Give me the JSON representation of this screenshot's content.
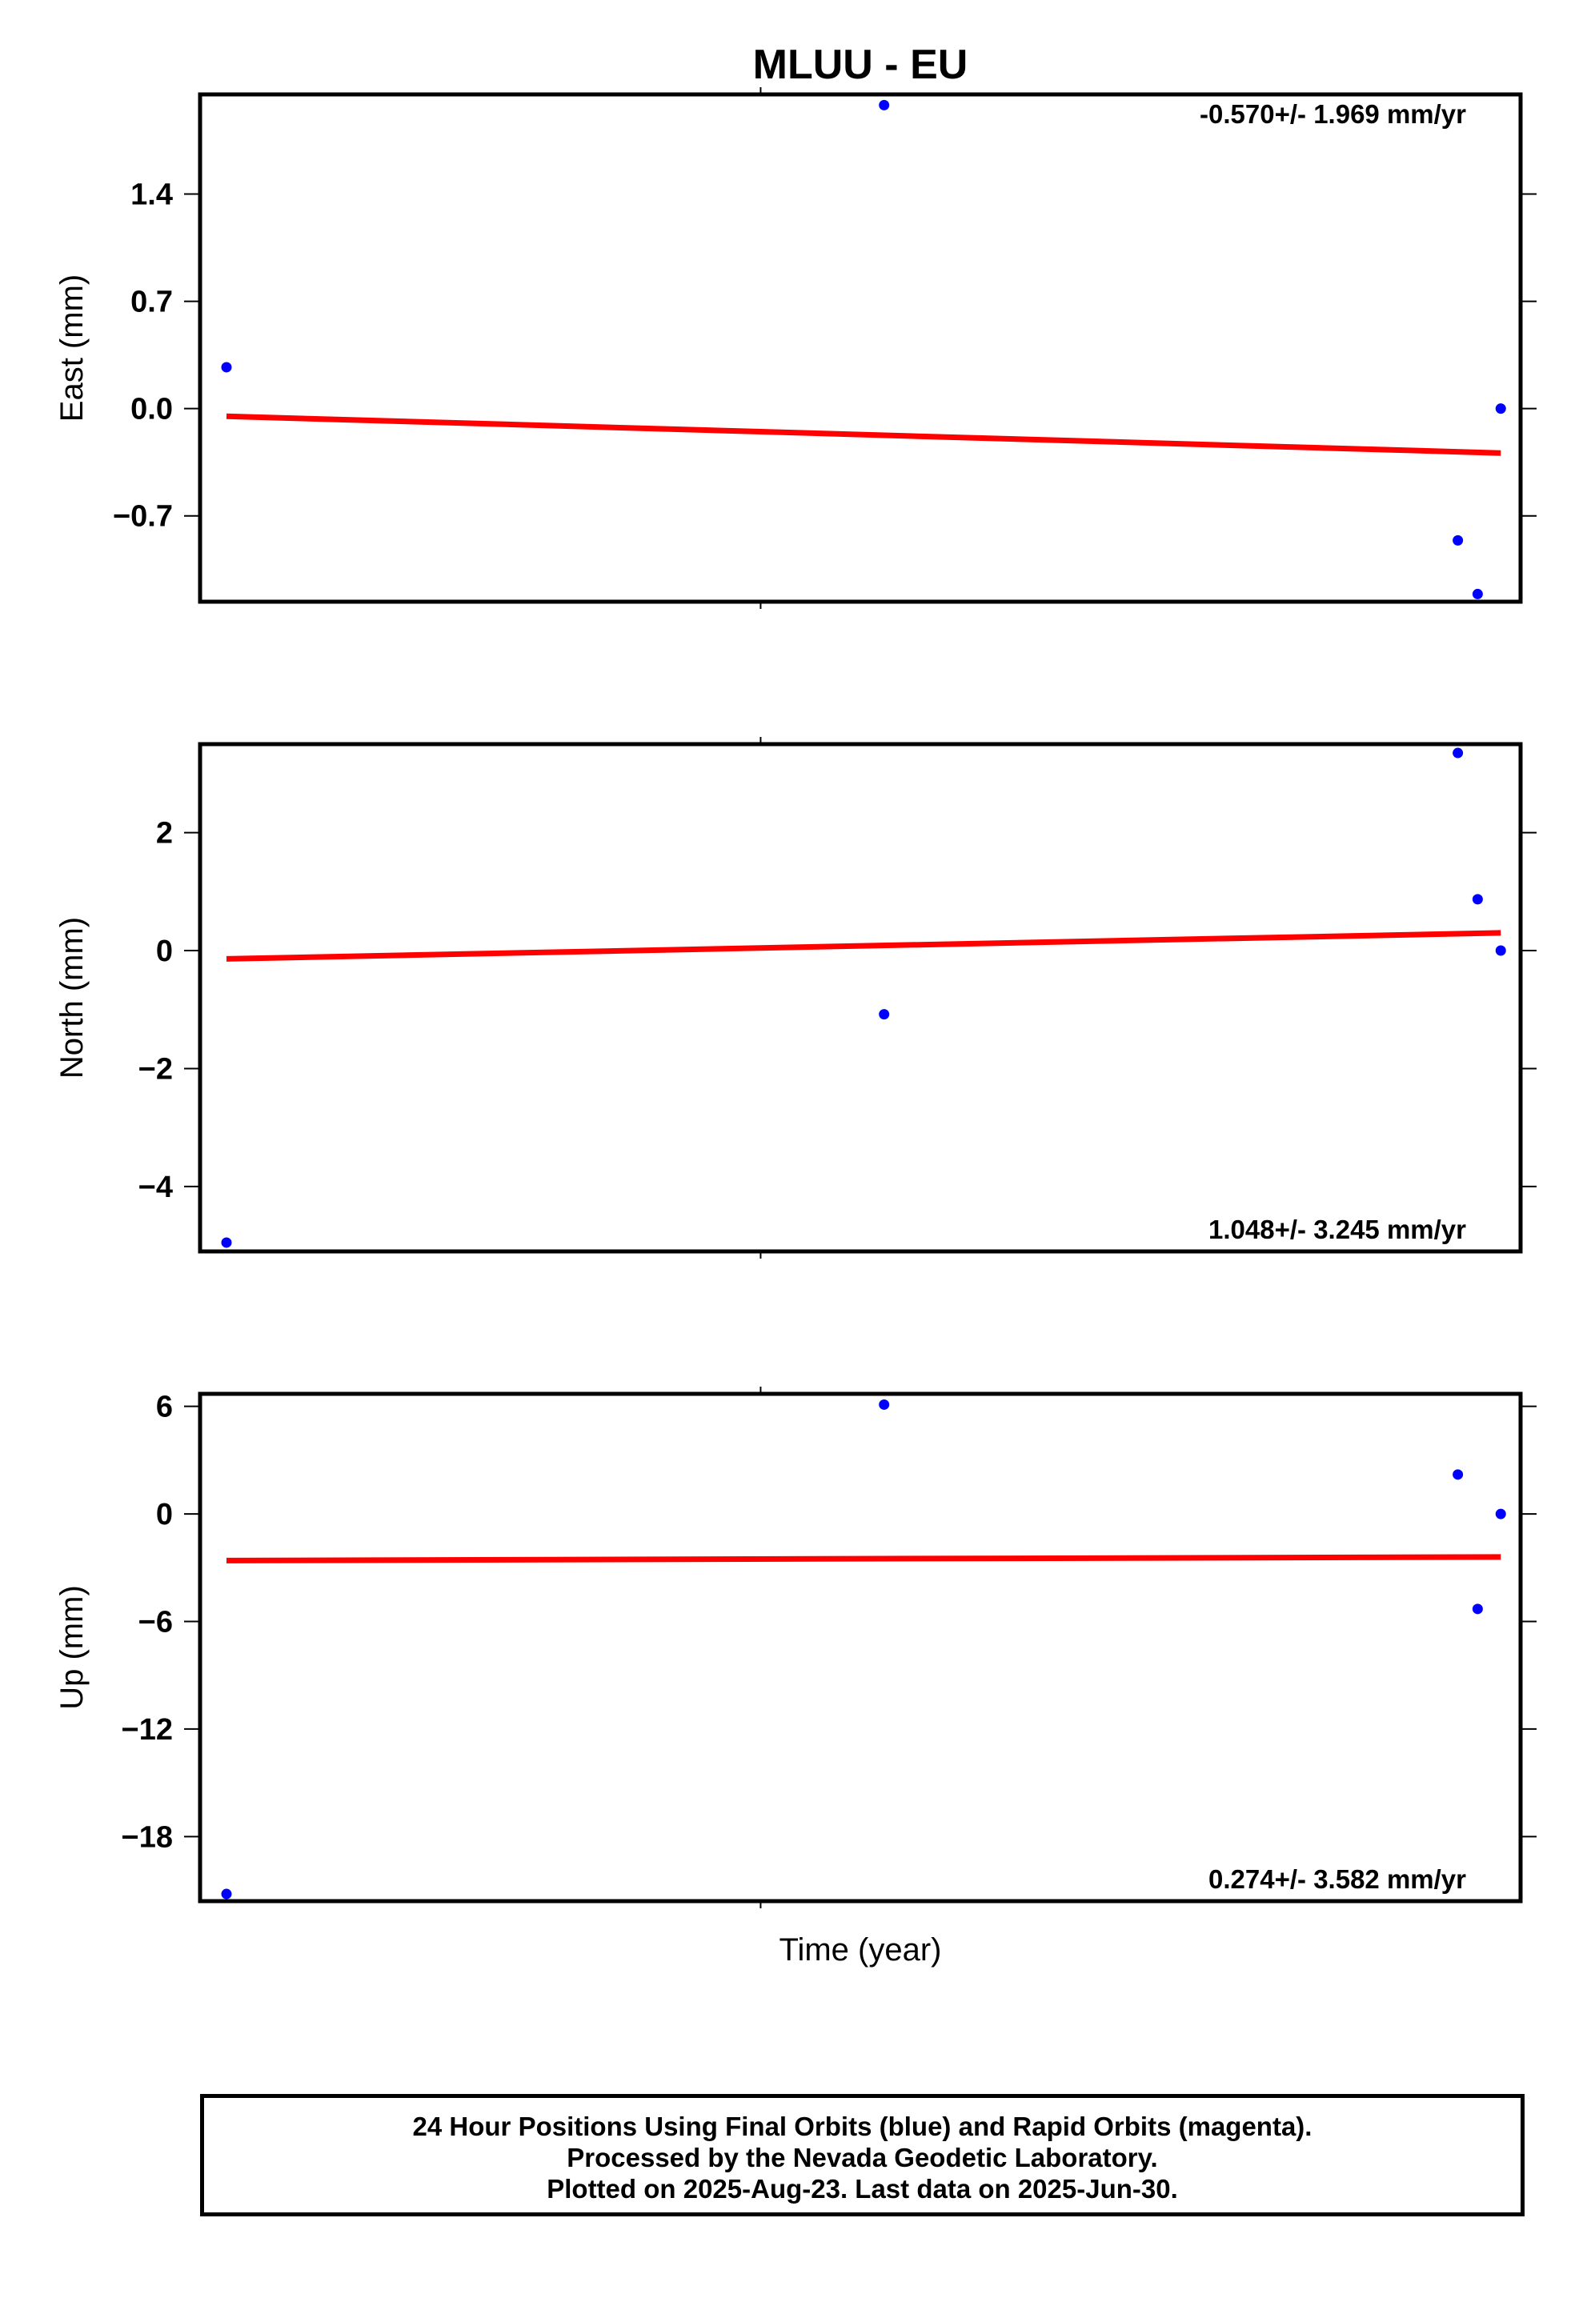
{
  "title": "MLUU - EU",
  "xlabel": "Time (year)",
  "footer": {
    "line1": "24 Hour Positions Using Final Orbits (blue) and Rapid Orbits (magenta).",
    "line2": "Processed by the Nevada Geodetic Laboratory.",
    "line3": "Plotted on 2025-Aug-23. Last data on 2025-Jun-30."
  },
  "colors": {
    "final_orbits": "#0000ff",
    "trend": "#ff0000",
    "frame": "#000000"
  },
  "chart_data": [
    {
      "type": "scatter",
      "ylabel": "East (mm)",
      "rate_label": "-0.570+/- 1.969 mm/yr",
      "rate_position": "top-right",
      "yticks": [
        1.4,
        0.7,
        0.0,
        -0.7
      ],
      "ytick_labels": [
        "1.4",
        "0.7",
        "0.0",
        "−0.7"
      ],
      "ylim": [
        -1.26,
        2.05
      ],
      "x": [
        0.02,
        0.518,
        0.9525,
        0.9675,
        0.985
      ],
      "y": [
        0.27,
        1.98,
        -0.86,
        -1.21,
        0.0
      ],
      "trend": {
        "x": [
          0.02,
          0.985
        ],
        "y": [
          -0.05,
          -0.29
        ]
      },
      "grid": false
    },
    {
      "type": "scatter",
      "ylabel": "North (mm)",
      "rate_label": "1.048+/- 3.245 mm/yr",
      "rate_position": "bottom-right",
      "yticks": [
        2,
        0,
        -2,
        -4
      ],
      "ytick_labels": [
        "2",
        "0",
        "−2",
        "−4"
      ],
      "ylim": [
        -5.1,
        3.5
      ],
      "x": [
        0.02,
        0.518,
        0.9525,
        0.9675,
        0.985
      ],
      "y": [
        -4.95,
        -1.08,
        3.35,
        0.87,
        0.0
      ],
      "trend": {
        "x": [
          0.02,
          0.985
        ],
        "y": [
          -0.14,
          0.3
        ]
      },
      "grid": false
    },
    {
      "type": "scatter",
      "ylabel": "Up (mm)",
      "rate_label": "0.274+/- 3.582 mm/yr",
      "rate_position": "bottom-right",
      "yticks": [
        6,
        0,
        -6,
        -12,
        -18
      ],
      "ytick_labels": [
        "6",
        "0",
        "−6",
        "−12",
        "−18"
      ],
      "ylim": [
        -21.6,
        6.7
      ],
      "x": [
        0.02,
        0.518,
        0.9525,
        0.9675,
        0.985
      ],
      "y": [
        -21.2,
        6.1,
        2.2,
        -5.3,
        0.0
      ],
      "trend": {
        "x": [
          0.02,
          0.985
        ],
        "y": [
          -2.6,
          -2.4
        ]
      },
      "grid": false
    }
  ]
}
